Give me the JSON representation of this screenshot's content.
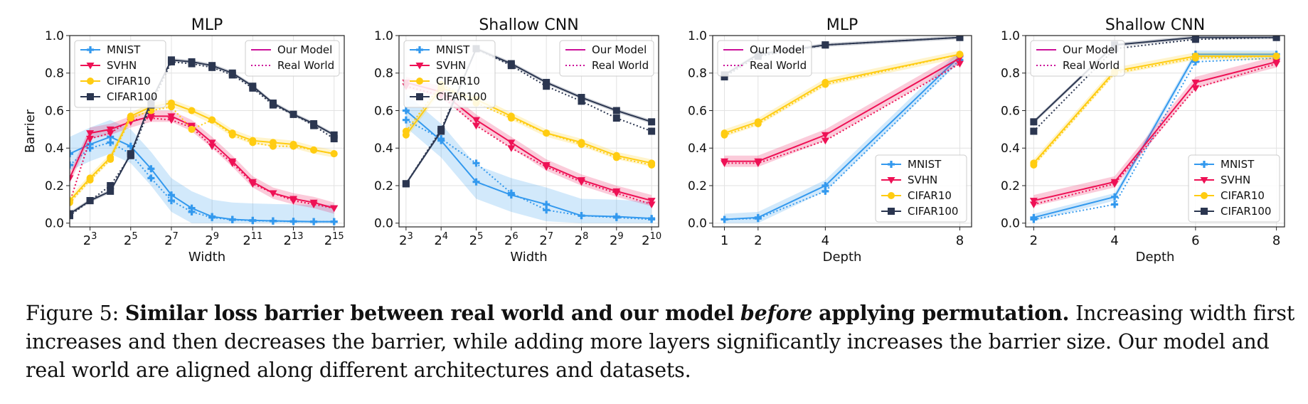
{
  "figure": {
    "caption": {
      "label": "Figure 5:",
      "bold_a": "Similar loss barrier between real world and our model",
      "bold_italic": "before",
      "bold_b": "applying permutation.",
      "rest": "Increasing width first increases and then decreases the barrier, while adding more layers significantly increases the barrier size. Our model and real world are aligned along different architectures and datasets."
    }
  },
  "colors": {
    "MNIST": "#3399ee",
    "SVHN": "#ee1155",
    "CIFAR10": "#ffcc11",
    "CIFAR100": "#2b3650",
    "legend_line": "#cc1199"
  },
  "chart_data": [
    {
      "type": "line",
      "title": "MLP",
      "xlabel": "Width",
      "ylabel": "Barrier",
      "x_scale": "log2",
      "xlim": [
        2,
        15.5
      ],
      "x_ticks": [
        3,
        5,
        7,
        9,
        11,
        13,
        15
      ],
      "x_tick_labels": [
        [
          "2",
          "3"
        ],
        [
          "2",
          "5"
        ],
        [
          "2",
          "7"
        ],
        [
          "2",
          "9"
        ],
        [
          "2",
          "11"
        ],
        [
          "2",
          "13"
        ],
        [
          "2",
          "15"
        ]
      ],
      "ylim": [
        -0.02,
        1.0
      ],
      "y_ticks": [
        0.0,
        0.2,
        0.4,
        0.6,
        0.8,
        1.0
      ],
      "y_tick_labels": [
        "0.0",
        "0.2",
        "0.4",
        "0.6",
        "0.8",
        "1.0"
      ],
      "grid": true,
      "legend_datasets": {
        "placement": "top-left",
        "entries": [
          "MNIST",
          "SVHN",
          "CIFAR10",
          "CIFAR100"
        ]
      },
      "legend_models": {
        "placement": "top-right",
        "entries": [
          "Our Model",
          "Real World"
        ]
      },
      "series": [
        {
          "name": "MNIST",
          "x": [
            2,
            3,
            4,
            5,
            6,
            7,
            8,
            9,
            10,
            11,
            12,
            13,
            14,
            15
          ],
          "model": [
            0.37,
            0.42,
            0.46,
            0.41,
            0.29,
            0.15,
            0.08,
            0.035,
            0.02,
            0.015,
            0.012,
            0.01,
            0.008,
            0.008
          ],
          "real": [
            0.31,
            0.4,
            0.43,
            0.37,
            0.24,
            0.12,
            0.06,
            0.03,
            0.018,
            0.013,
            0.011,
            0.009,
            0.008,
            0.008
          ],
          "band": 0.09
        },
        {
          "name": "SVHN",
          "x": [
            2,
            3,
            4,
            5,
            6,
            7,
            8,
            9,
            10,
            11,
            12,
            13,
            14,
            15
          ],
          "model": [
            0.24,
            0.48,
            0.5,
            0.54,
            0.57,
            0.57,
            0.52,
            0.43,
            0.33,
            0.22,
            0.16,
            0.13,
            0.11,
            0.08
          ],
          "real": [
            0.11,
            0.45,
            0.48,
            0.55,
            0.56,
            0.55,
            0.51,
            0.41,
            0.32,
            0.21,
            0.16,
            0.12,
            0.1,
            0.08
          ],
          "band": 0.03
        },
        {
          "name": "CIFAR10",
          "x": [
            2,
            3,
            4,
            5,
            6,
            7,
            8,
            9,
            10,
            11,
            12,
            13,
            14,
            15
          ],
          "model": [
            0.12,
            0.24,
            0.35,
            0.57,
            0.62,
            0.64,
            0.6,
            0.55,
            0.48,
            0.44,
            0.43,
            0.42,
            0.39,
            0.37
          ],
          "real": [
            0.11,
            0.23,
            0.34,
            0.56,
            0.6,
            0.62,
            0.5,
            0.55,
            0.47,
            0.43,
            0.41,
            0.41,
            0.39,
            0.37
          ],
          "band": 0.02
        },
        {
          "name": "CIFAR100",
          "x": [
            2,
            3,
            4,
            5,
            6,
            7,
            8,
            9,
            10,
            11,
            12,
            13,
            14,
            15
          ],
          "model": [
            0.05,
            0.12,
            0.17,
            0.37,
            0.65,
            0.87,
            0.86,
            0.84,
            0.8,
            0.73,
            0.64,
            0.58,
            0.53,
            0.47
          ],
          "real": [
            0.04,
            0.12,
            0.2,
            0.36,
            0.63,
            0.86,
            0.85,
            0.83,
            0.79,
            0.72,
            0.63,
            0.58,
            0.52,
            0.45
          ],
          "band": 0.01
        }
      ]
    },
    {
      "type": "line",
      "title": "Shallow CNN",
      "xlabel": "Width",
      "ylabel": "",
      "x_scale": "log2",
      "xlim": [
        2.8,
        10.2
      ],
      "x_ticks": [
        3,
        4,
        5,
        6,
        7,
        8,
        9,
        10
      ],
      "x_tick_labels": [
        [
          "2",
          "3"
        ],
        [
          "2",
          "4"
        ],
        [
          "2",
          "5"
        ],
        [
          "2",
          "6"
        ],
        [
          "2",
          "7"
        ],
        [
          "2",
          "8"
        ],
        [
          "2",
          "9"
        ],
        [
          "2",
          "10"
        ]
      ],
      "ylim": [
        -0.02,
        1.0
      ],
      "y_ticks": [
        0.0,
        0.2,
        0.4,
        0.6,
        0.8,
        1.0
      ],
      "y_tick_labels": [
        "0.0",
        "0.2",
        "0.4",
        "0.6",
        "0.8",
        "1.0"
      ],
      "grid": true,
      "legend_datasets": {
        "placement": "top-left",
        "entries": [
          "MNIST",
          "SVHN",
          "CIFAR10",
          "CIFAR100"
        ]
      },
      "legend_models": {
        "placement": "top-right",
        "entries": [
          "Our Model",
          "Real World"
        ]
      },
      "series": [
        {
          "name": "MNIST",
          "x": [
            3,
            4,
            5,
            6,
            7,
            8,
            9,
            10
          ],
          "model": [
            0.6,
            0.44,
            0.22,
            0.15,
            0.1,
            0.04,
            0.035,
            0.025
          ],
          "real": [
            0.55,
            0.45,
            0.32,
            0.16,
            0.07,
            0.04,
            0.03,
            0.02
          ],
          "band": 0.09
        },
        {
          "name": "SVHN",
          "x": [
            3,
            4,
            5,
            6,
            7,
            8,
            9,
            10
          ],
          "model": [
            0.75,
            0.7,
            0.55,
            0.43,
            0.31,
            0.23,
            0.17,
            0.12
          ],
          "real": [
            0.73,
            0.68,
            0.52,
            0.4,
            0.3,
            0.22,
            0.16,
            0.1
          ],
          "band": 0.03
        },
        {
          "name": "CIFAR10",
          "x": [
            3,
            4,
            5,
            6,
            7,
            8,
            9,
            10
          ],
          "model": [
            0.47,
            0.72,
            0.66,
            0.57,
            0.48,
            0.43,
            0.36,
            0.32
          ],
          "real": [
            0.49,
            0.74,
            0.64,
            0.56,
            0.48,
            0.42,
            0.35,
            0.31
          ],
          "band": 0.02
        },
        {
          "name": "CIFAR100",
          "x": [
            3,
            4,
            5,
            6,
            7,
            8,
            9,
            10
          ],
          "model": [
            0.21,
            0.49,
            0.93,
            0.85,
            0.75,
            0.67,
            0.6,
            0.54
          ],
          "real": [
            0.21,
            0.5,
            0.93,
            0.84,
            0.73,
            0.65,
            0.56,
            0.49
          ],
          "band": 0.01
        }
      ]
    },
    {
      "type": "line",
      "title": "MLP",
      "xlabel": "Depth",
      "ylabel": "",
      "x_scale": "linear",
      "xlim": [
        0.65,
        8.35
      ],
      "x_ticks": [
        1,
        2,
        4,
        8
      ],
      "x_tick_labels": [
        [
          "1",
          ""
        ],
        [
          "2",
          ""
        ],
        [
          "4",
          ""
        ],
        [
          "8",
          ""
        ]
      ],
      "ylim": [
        -0.02,
        1.0
      ],
      "y_ticks": [
        0.0,
        0.2,
        0.4,
        0.6,
        0.8,
        1.0
      ],
      "y_tick_labels": [
        "0.0",
        "0.2",
        "0.4",
        "0.6",
        "0.8",
        "1.0"
      ],
      "grid": true,
      "legend_datasets": {
        "placement": "bottom-right",
        "entries": [
          "MNIST",
          "SVHN",
          "CIFAR10",
          "CIFAR100"
        ]
      },
      "legend_models": {
        "placement": "top-left",
        "entries": [
          "Our Model",
          "Real World"
        ]
      },
      "series": [
        {
          "name": "MNIST",
          "x": [
            1,
            2,
            4,
            8
          ],
          "model": [
            0.02,
            0.03,
            0.2,
            0.89
          ],
          "real": [
            0.02,
            0.025,
            0.17,
            0.87
          ],
          "band": 0.03
        },
        {
          "name": "SVHN",
          "x": [
            1,
            2,
            4,
            8
          ],
          "model": [
            0.33,
            0.33,
            0.47,
            0.88
          ],
          "real": [
            0.32,
            0.32,
            0.44,
            0.85
          ],
          "band": 0.03
        },
        {
          "name": "CIFAR10",
          "x": [
            1,
            2,
            4,
            8
          ],
          "model": [
            0.48,
            0.54,
            0.75,
            0.9
          ],
          "real": [
            0.47,
            0.53,
            0.74,
            0.9
          ],
          "band": 0.02
        },
        {
          "name": "CIFAR100",
          "x": [
            1,
            2,
            4,
            8
          ],
          "model": [
            0.79,
            0.9,
            0.95,
            0.99
          ],
          "real": [
            0.78,
            0.89,
            0.95,
            0.99
          ],
          "band": 0.01
        }
      ]
    },
    {
      "type": "line",
      "title": "Shallow CNN",
      "xlabel": "Depth",
      "ylabel": "",
      "x_scale": "linear",
      "xlim": [
        1.8,
        8.2
      ],
      "x_ticks": [
        2,
        4,
        6,
        8
      ],
      "x_tick_labels": [
        [
          "2",
          ""
        ],
        [
          "4",
          ""
        ],
        [
          "6",
          ""
        ],
        [
          "8",
          ""
        ]
      ],
      "ylim": [
        -0.02,
        1.0
      ],
      "y_ticks": [
        0.0,
        0.2,
        0.4,
        0.6,
        0.8,
        1.0
      ],
      "y_tick_labels": [
        "0.0",
        "0.2",
        "0.4",
        "0.6",
        "0.8",
        "1.0"
      ],
      "grid": true,
      "legend_datasets": {
        "placement": "bottom-right",
        "entries": [
          "MNIST",
          "SVHN",
          "CIFAR10",
          "CIFAR100"
        ]
      },
      "legend_models": {
        "placement": "top-left",
        "entries": [
          "Our Model",
          "Real World"
        ]
      },
      "series": [
        {
          "name": "MNIST",
          "x": [
            2,
            4,
            6,
            8
          ],
          "model": [
            0.03,
            0.14,
            0.9,
            0.9
          ],
          "real": [
            0.02,
            0.1,
            0.86,
            0.88
          ],
          "band": 0.02
        },
        {
          "name": "SVHN",
          "x": [
            2,
            4,
            6,
            8
          ],
          "model": [
            0.12,
            0.22,
            0.75,
            0.86
          ],
          "real": [
            0.1,
            0.21,
            0.72,
            0.85
          ],
          "band": 0.03
        },
        {
          "name": "CIFAR10",
          "x": [
            2,
            4,
            6,
            8
          ],
          "model": [
            0.32,
            0.81,
            0.89,
            0.89
          ],
          "real": [
            0.31,
            0.8,
            0.88,
            0.89
          ],
          "band": 0.02
        },
        {
          "name": "CIFAR100",
          "x": [
            2,
            4,
            6,
            8
          ],
          "model": [
            0.54,
            0.95,
            0.99,
            0.99
          ],
          "real": [
            0.49,
            0.93,
            0.98,
            0.99
          ],
          "band": 0.01
        }
      ]
    }
  ]
}
